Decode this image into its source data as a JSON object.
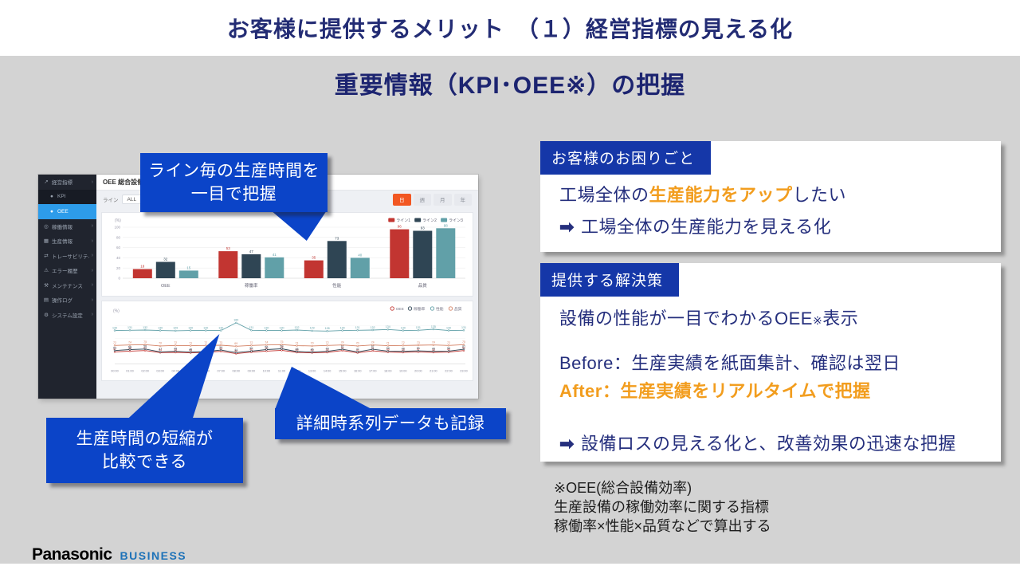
{
  "slide": {
    "title": "お客様に提供するメリット　（１）経営指標の見える化",
    "subtitle": "重要情報（KPI･OEE※）の把握"
  },
  "dashboard": {
    "header": {
      "title": "OEE 総合設備効率"
    },
    "filter": {
      "label": "ライン",
      "value": "ALL"
    },
    "period_buttons": [
      "日",
      "週",
      "月",
      "年"
    ],
    "active_period": "日",
    "sidebar": {
      "items": [
        {
          "id": "keiei-shihyo",
          "label": "経営指標",
          "icon": "trend-chart-icon",
          "glyph": "↗",
          "child": false,
          "active": false,
          "expandable": true
        },
        {
          "id": "kpi",
          "label": "KPI",
          "icon": "kpi-dot-icon",
          "glyph": "●",
          "child": true,
          "active": false,
          "expandable": false
        },
        {
          "id": "oee",
          "label": "OEE",
          "icon": "oee-dot-icon",
          "glyph": "●",
          "child": true,
          "active": true,
          "expandable": false
        },
        {
          "id": "kado-joho",
          "label": "稼働情報",
          "icon": "gauge-icon",
          "glyph": "◎",
          "child": false,
          "active": false,
          "expandable": true
        },
        {
          "id": "seisan-joho",
          "label": "生産情報",
          "icon": "production-icon",
          "glyph": "▦",
          "child": false,
          "active": false,
          "expandable": true
        },
        {
          "id": "traceability",
          "label": "トレーサビリティ",
          "icon": "traceability-icon",
          "glyph": "⇄",
          "child": false,
          "active": false,
          "expandable": true
        },
        {
          "id": "error-rireki",
          "label": "エラー履歴",
          "icon": "error-warning-icon",
          "glyph": "⚠",
          "child": false,
          "active": false,
          "expandable": true
        },
        {
          "id": "maintenance",
          "label": "メンテナンス",
          "icon": "maintenance-wrench-icon",
          "glyph": "⚒",
          "child": false,
          "active": false,
          "expandable": true
        },
        {
          "id": "sosa-log",
          "label": "操作ログ",
          "icon": "log-icon",
          "glyph": "▤",
          "child": false,
          "active": false,
          "expandable": true
        },
        {
          "id": "system-settings",
          "label": "システム設定",
          "icon": "settings-gear-icon",
          "glyph": "⚙",
          "child": false,
          "active": false,
          "expandable": true
        }
      ]
    }
  },
  "chart_data": [
    {
      "type": "bar",
      "categories": [
        "OEE",
        "稼働率",
        "性能",
        "品質"
      ],
      "series": [
        {
          "name": "ライン1",
          "color": "#c23531",
          "values": [
            18,
            53,
            35,
            96
          ]
        },
        {
          "name": "ライン2",
          "color": "#2f4554",
          "values": [
            32,
            47,
            73,
            93
          ]
        },
        {
          "name": "ライン3",
          "color": "#61a0a8",
          "values": [
            15,
            41,
            40,
            98
          ]
        }
      ],
      "ylabel": "(%)",
      "ylim": [
        0,
        100
      ],
      "grid": true,
      "legend_position": "top-right"
    },
    {
      "type": "line",
      "x": [
        "00:00",
        "01:00",
        "02:00",
        "03:00",
        "04:00",
        "05:00",
        "06:00",
        "07:00",
        "08:00",
        "09:00",
        "10:00",
        "11:00",
        "12:00",
        "13:00",
        "14:00",
        "15:00",
        "16:00",
        "17:00",
        "18:00",
        "19:00",
        "20:00",
        "21:00",
        "22:00",
        "23:00"
      ],
      "series": [
        {
          "name": "OEE",
          "color": "#c23531",
          "values": [
            47,
            50,
            52,
            44,
            45,
            43,
            45,
            49,
            40,
            46,
            50,
            53,
            45,
            43,
            45,
            52,
            43,
            51,
            46,
            45,
            47,
            45,
            46,
            52
          ]
        },
        {
          "name": "稼働率",
          "color": "#2f4554",
          "values": [
            52,
            56,
            58,
            47,
            49,
            46,
            48,
            54,
            44,
            50,
            56,
            59,
            48,
            46,
            49,
            57,
            47,
            57,
            50,
            49,
            51,
            49,
            50,
            57
          ]
        },
        {
          "name": "性能",
          "color": "#61a0a8",
          "values": [
            130,
            131,
            132,
            130,
            129,
            130,
            130,
            130,
            160,
            131,
            130,
            130,
            132,
            129,
            128,
            130,
            131,
            132,
            134,
            130,
            131,
            135,
            130,
            131
          ]
        },
        {
          "name": "品質",
          "color": "#d48265",
          "values": [
            72,
            74,
            75,
            70,
            72,
            71,
            72,
            73,
            69,
            72,
            74,
            75,
            71,
            70,
            72,
            74,
            70,
            74,
            71,
            72,
            73,
            74,
            72,
            75
          ]
        }
      ],
      "ylabel": "(%)",
      "ylim": [
        0,
        180
      ],
      "grid": false,
      "legend_position": "top-right"
    }
  ],
  "callouts": {
    "c1": {
      "lines": [
        "ライン毎の生産時間を",
        "一目で把握"
      ]
    },
    "c2": {
      "lines": [
        "生産時間の短縮が",
        "比較できる"
      ]
    },
    "c3": {
      "lines": [
        "詳細時系列データも記録"
      ]
    }
  },
  "panels": {
    "problem": {
      "header": "お客様のお困りごと",
      "line1_prefix": "工場全体の",
      "line1_highlight": "生産能力をアップ",
      "line1_suffix": "したい",
      "arrow": "➡",
      "line2": "工場全体の生産能力を見える化"
    },
    "solution": {
      "header": "提供する解決策",
      "line1_text": "設備の性能が一目でわかるOEE",
      "line1_sup": "※",
      "line1_suffix": "表示",
      "before_line": "Before：生産実績を紙面集計、確認は翌日",
      "after_line": "After：生産実績をリアルタイムで把握",
      "arrow": "➡",
      "result_line": "設備ロスの見える化と、改善効果の迅速な把握"
    }
  },
  "footnote": {
    "lines": [
      "※OEE(総合設備効率)",
      "生産設備の稼働効率に関する指標",
      "稼働率×性能×品質などで算出する"
    ]
  },
  "footer": {
    "brand": "Panasonic",
    "sub_brand": "BUSINESS"
  },
  "colors": {
    "callout_blue": "#0b44c8",
    "panel_header_blue": "#1537a8",
    "highlight_orange": "#f29d1e",
    "title_navy": "#232c74",
    "active_period_orange": "#f25722",
    "sidebar_active_blue": "#2d9cea"
  }
}
